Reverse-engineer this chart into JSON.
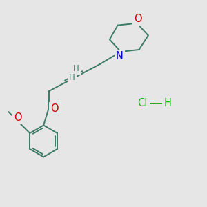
{
  "background_color": "#e6e6e6",
  "bond_color": "#3d7a65",
  "bond_width": 1.4,
  "atom_colors": {
    "O": "#cc0000",
    "N": "#0000cc",
    "C": "#000000",
    "H": "#3d7a65",
    "Cl": "#22aa22"
  },
  "font_size": 9.5,
  "figsize": [
    3.0,
    3.0
  ],
  "dpi": 100
}
